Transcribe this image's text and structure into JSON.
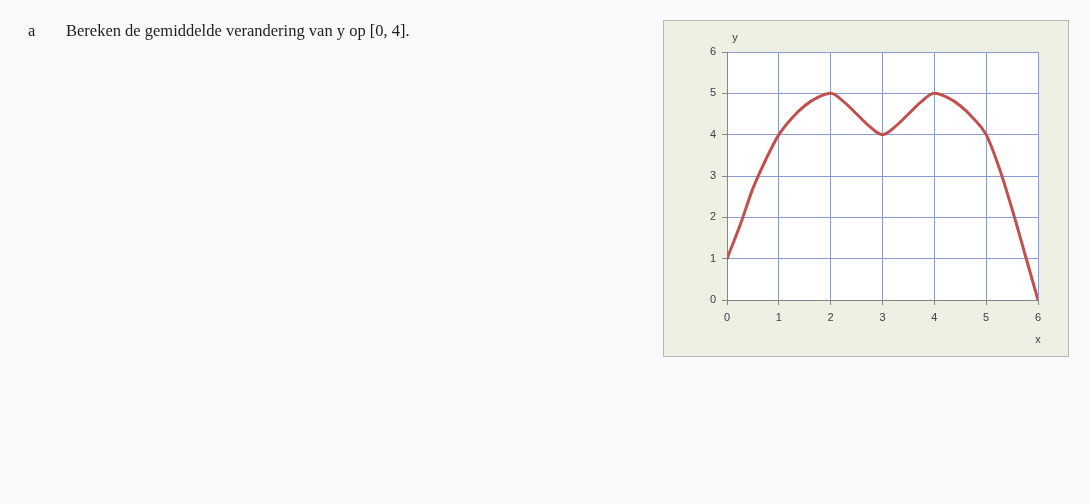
{
  "chart_data": {
    "type": "line",
    "annotations": [
      "a",
      "Bereken de gemiddelde verandering van y op [0, 4]."
    ],
    "xlabel": "x",
    "ylabel": "y",
    "x": [
      0,
      0.25,
      0.5,
      0.75,
      1,
      1.25,
      1.5,
      1.75,
      2,
      2.25,
      2.5,
      2.75,
      3,
      3.25,
      3.5,
      3.75,
      4,
      4.25,
      4.5,
      4.75,
      5,
      5.25,
      5.5,
      5.75,
      6
    ],
    "values": [
      1,
      1.8,
      2.7,
      3.4,
      4,
      4.4,
      4.7,
      4.9,
      5,
      4.8,
      4.5,
      4.2,
      4,
      4.2,
      4.5,
      4.8,
      5,
      4.9,
      4.7,
      4.4,
      4,
      3.2,
      2.2,
      1.1,
      0
    ],
    "color": "#c0504d",
    "xlim": [
      0,
      6
    ],
    "ylim": [
      0,
      6
    ],
    "xticks": [
      0,
      1,
      2,
      3,
      4,
      5,
      6
    ],
    "yticks": [
      0,
      1,
      2,
      3,
      4,
      5,
      6
    ],
    "grid": true,
    "line_style": "solid"
  }
}
